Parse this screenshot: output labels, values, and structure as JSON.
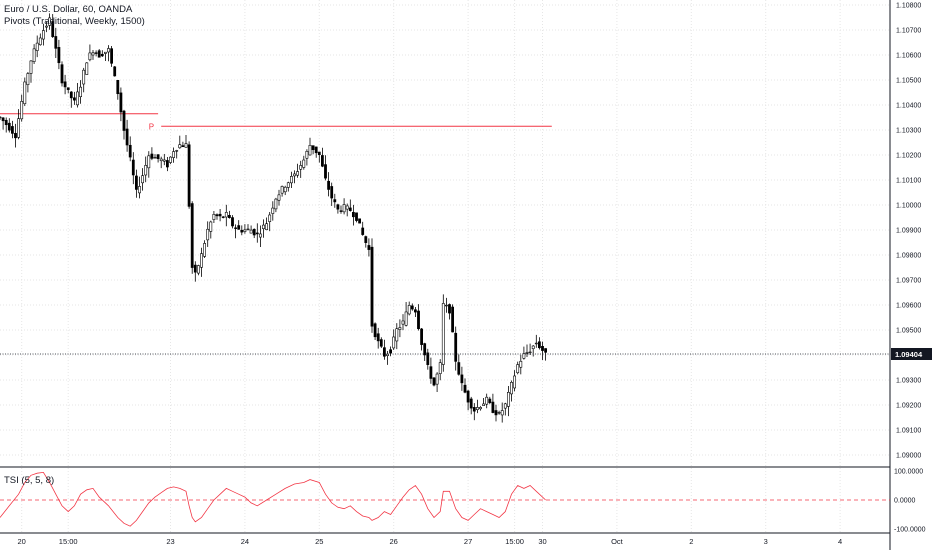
{
  "main_legend": {
    "symbol_line": "Euro / U.S. Dollar, 60, OANDA",
    "pivots_line": "Pivots (Traditional, Weekly, 1500)"
  },
  "tsi_legend": "TSI (5, 5, 8)",
  "pivot": {
    "label": "P",
    "value": 1.10315,
    "color": "#f23645"
  },
  "prev_pivot": {
    "value": 1.10365
  },
  "last_price": {
    "label": "1.09404",
    "value": 1.09404
  },
  "colors": {
    "candle_up": "#ffffff",
    "candle_down": "#000000",
    "wick": "#000000",
    "tsi_line": "#f23645",
    "grid": "#e6e6e6",
    "axis": "#131722"
  },
  "chart_data": [
    {
      "type": "candlestick",
      "title": "Euro / U.S. Dollar, 60, OANDA",
      "y_ticks": [
        "1.10800",
        "1.10700",
        "1.10600",
        "1.10500",
        "1.10400",
        "1.10300",
        "1.10200",
        "1.10100",
        "1.10000",
        "1.09900",
        "1.09800",
        "1.09700",
        "1.09600",
        "1.09500",
        "1.09400",
        "1.09300",
        "1.09200",
        "1.09100",
        "1.09000"
      ],
      "ylim": [
        1.0896,
        1.1082
      ],
      "x_ticks": [
        "20",
        "15:00",
        "23",
        "24",
        "25",
        "26",
        "27",
        "15:00",
        "30",
        "Oct",
        "2",
        "3",
        "4"
      ],
      "x_tick_hours": [
        7,
        22,
        55,
        79,
        103,
        127,
        151,
        166,
        175,
        199,
        223,
        247,
        271
      ],
      "price_series": [
        [
          0,
          1.1035
        ],
        [
          3,
          1.1031
        ],
        [
          5,
          1.1028
        ],
        [
          8,
          1.1048
        ],
        [
          10,
          1.1058
        ],
        [
          12,
          1.1065
        ],
        [
          14,
          1.107
        ],
        [
          16,
          1.1074
        ],
        [
          18,
          1.1062
        ],
        [
          20,
          1.105
        ],
        [
          22,
          1.1045
        ],
        [
          24,
          1.1041
        ],
        [
          26,
          1.1048
        ],
        [
          28,
          1.1058
        ],
        [
          30,
          1.1062
        ],
        [
          32,
          1.106
        ],
        [
          35,
          1.1062
        ],
        [
          38,
          1.1045
        ],
        [
          40,
          1.103
        ],
        [
          42,
          1.1018
        ],
        [
          44,
          1.1005
        ],
        [
          46,
          1.1012
        ],
        [
          48,
          1.102
        ],
        [
          50,
          1.1019
        ],
        [
          52,
          1.1018
        ],
        [
          54,
          1.1016
        ],
        [
          56,
          1.1022
        ],
        [
          58,
          1.1024
        ],
        [
          60,
          1.1024
        ],
        [
          61,
          1.1
        ],
        [
          62,
          1.0975
        ],
        [
          63,
          1.0972
        ],
        [
          65,
          1.098
        ],
        [
          67,
          1.099
        ],
        [
          69,
          1.0996
        ],
        [
          71,
          1.0995
        ],
        [
          73,
          1.0996
        ],
        [
          75,
          1.0992
        ],
        [
          77,
          1.099
        ],
        [
          79,
          1.099
        ],
        [
          81,
          1.099
        ],
        [
          83,
          1.0988
        ],
        [
          86,
          1.0993
        ],
        [
          89,
          1.1003
        ],
        [
          92,
          1.1008
        ],
        [
          95,
          1.1012
        ],
        [
          98,
          1.1018
        ],
        [
          100,
          1.1024
        ],
        [
          103,
          1.102
        ],
        [
          105,
          1.101
        ],
        [
          107,
          1.1003
        ],
        [
          109,
          1.0998
        ],
        [
          111,
          1.0999
        ],
        [
          113,
          1.0998
        ],
        [
          115,
          1.0995
        ],
        [
          117,
          1.0988
        ],
        [
          119,
          1.0982
        ],
        [
          120,
          1.0952
        ],
        [
          122,
          1.0945
        ],
        [
          124,
          1.094
        ],
        [
          126,
          1.0942
        ],
        [
          128,
          1.095
        ],
        [
          130,
          1.0953
        ],
        [
          132,
          1.096
        ],
        [
          134,
          1.0958
        ],
        [
          136,
          1.0945
        ],
        [
          138,
          1.0935
        ],
        [
          140,
          1.0928
        ],
        [
          142,
          1.0936
        ],
        [
          143,
          1.096
        ],
        [
          145,
          1.0958
        ],
        [
          147,
          1.0938
        ],
        [
          149,
          1.0928
        ],
        [
          151,
          1.0922
        ],
        [
          153,
          1.0918
        ],
        [
          155,
          1.092
        ],
        [
          157,
          1.0922
        ],
        [
          159,
          1.0918
        ],
        [
          161,
          1.0916
        ],
        [
          163,
          1.092
        ],
        [
          165,
          1.0928
        ],
        [
          167,
          1.0936
        ],
        [
          169,
          1.094
        ],
        [
          171,
          1.0942
        ],
        [
          173,
          1.0945
        ],
        [
          175,
          1.0942
        ],
        [
          176,
          1.094
        ]
      ]
    },
    {
      "type": "line",
      "title": "TSI (5, 5, 8)",
      "y_ticks": [
        "100.0000",
        "0.0000",
        "-100.0000"
      ],
      "ylim": [
        -110,
        110
      ],
      "zero_line": 0,
      "series": [
        {
          "values": [
            [
              0,
              -60
            ],
            [
              3,
              -20
            ],
            [
              6,
              20
            ],
            [
              8,
              60
            ],
            [
              10,
              85
            ],
            [
              12,
              92
            ],
            [
              14,
              95
            ],
            [
              16,
              60
            ],
            [
              18,
              20
            ],
            [
              20,
              -20
            ],
            [
              22,
              -40
            ],
            [
              24,
              -20
            ],
            [
              26,
              20
            ],
            [
              28,
              35
            ],
            [
              30,
              40
            ],
            [
              32,
              10
            ],
            [
              35,
              -20
            ],
            [
              38,
              -60
            ],
            [
              40,
              -80
            ],
            [
              42,
              -90
            ],
            [
              44,
              -70
            ],
            [
              46,
              -40
            ],
            [
              48,
              -10
            ],
            [
              50,
              10
            ],
            [
              52,
              25
            ],
            [
              54,
              40
            ],
            [
              56,
              45
            ],
            [
              58,
              40
            ],
            [
              60,
              30
            ],
            [
              61,
              -20
            ],
            [
              62,
              -60
            ],
            [
              63,
              -75
            ],
            [
              65,
              -60
            ],
            [
              67,
              -30
            ],
            [
              69,
              0
            ],
            [
              71,
              20
            ],
            [
              73,
              40
            ],
            [
              75,
              30
            ],
            [
              77,
              20
            ],
            [
              79,
              10
            ],
            [
              81,
              -10
            ],
            [
              83,
              -20
            ],
            [
              86,
              0
            ],
            [
              89,
              20
            ],
            [
              92,
              40
            ],
            [
              95,
              55
            ],
            [
              98,
              60
            ],
            [
              100,
              70
            ],
            [
              103,
              60
            ],
            [
              105,
              20
            ],
            [
              107,
              -10
            ],
            [
              109,
              -25
            ],
            [
              111,
              -30
            ],
            [
              113,
              -20
            ],
            [
              115,
              -40
            ],
            [
              117,
              -55
            ],
            [
              119,
              -60
            ],
            [
              120,
              -70
            ],
            [
              122,
              -60
            ],
            [
              124,
              -40
            ],
            [
              126,
              -50
            ],
            [
              128,
              -20
            ],
            [
              130,
              10
            ],
            [
              132,
              35
            ],
            [
              134,
              50
            ],
            [
              136,
              20
            ],
            [
              138,
              -30
            ],
            [
              140,
              -60
            ],
            [
              142,
              -40
            ],
            [
              143,
              30
            ],
            [
              145,
              30
            ],
            [
              147,
              -30
            ],
            [
              149,
              -60
            ],
            [
              151,
              -70
            ],
            [
              153,
              -50
            ],
            [
              155,
              -30
            ],
            [
              157,
              -40
            ],
            [
              159,
              -50
            ],
            [
              161,
              -60
            ],
            [
              163,
              -40
            ],
            [
              165,
              20
            ],
            [
              167,
              50
            ],
            [
              169,
              40
            ],
            [
              171,
              50
            ],
            [
              173,
              30
            ],
            [
              175,
              10
            ],
            [
              176,
              0
            ]
          ]
        }
      ]
    }
  ]
}
